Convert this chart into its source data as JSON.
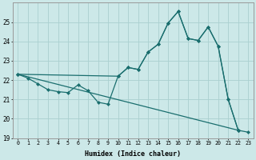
{
  "xlabel": "Humidex (Indice chaleur)",
  "bg_color": "#cce8e8",
  "line_color": "#1a6e6e",
  "grid_color": "#aad0d0",
  "xmin": -0.5,
  "xmax": 23.5,
  "ymin": 19,
  "ymax": 26,
  "yticks": [
    19,
    20,
    21,
    22,
    23,
    24,
    25
  ],
  "xticks": [
    0,
    1,
    2,
    3,
    4,
    5,
    6,
    7,
    8,
    9,
    10,
    11,
    12,
    13,
    14,
    15,
    16,
    17,
    18,
    19,
    20,
    21,
    22,
    23
  ],
  "line1_x": [
    0,
    22,
    23
  ],
  "line1_y": [
    22.3,
    19.4,
    19.3
  ],
  "line2_x": [
    0,
    1,
    2,
    3,
    4,
    5,
    6,
    7,
    8,
    9,
    10,
    11,
    12,
    13,
    14,
    15,
    16,
    17,
    18,
    19,
    20,
    21,
    22
  ],
  "line2_y": [
    22.3,
    22.1,
    21.8,
    21.5,
    21.4,
    21.35,
    21.75,
    21.45,
    20.85,
    20.75,
    22.2,
    22.65,
    22.55,
    23.45,
    23.85,
    24.95,
    25.55,
    24.15,
    24.05,
    24.75,
    23.75,
    21.0,
    19.4
  ],
  "line3_x": [
    0,
    10,
    11,
    12,
    13,
    14,
    15,
    16,
    17,
    18,
    19,
    20,
    21,
    22
  ],
  "line3_y": [
    22.3,
    22.2,
    22.65,
    22.55,
    23.45,
    23.85,
    24.95,
    25.55,
    24.15,
    24.05,
    24.75,
    23.75,
    21.0,
    19.4
  ]
}
